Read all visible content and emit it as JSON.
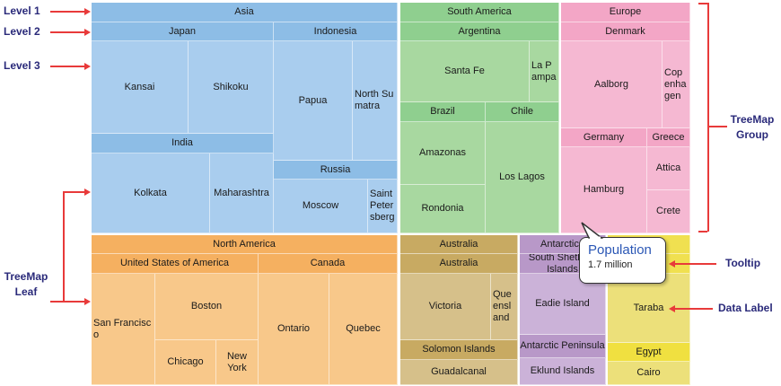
{
  "annotations": {
    "level1": "Level 1",
    "level2": "Level 2",
    "level3": "Level 3",
    "leaf": "TreeMap Leaf",
    "group": "TreeMap Group",
    "tooltip": "Tooltip",
    "data_label": "Data Label"
  },
  "tooltip": {
    "title": "Population",
    "value": "1.7 million"
  },
  "colors": {
    "asia": "#a9cdee",
    "south_america": "#a8d8a0",
    "europe": "#f5b8d2",
    "north_america": "#f8c88a",
    "australia": "#d6c08a",
    "antarctica": "#cbb2d8",
    "africa": "#ece07a",
    "annotation_arrow": "#e83a3a"
  },
  "treemap": {
    "groups": [
      {
        "name": "Asia",
        "children": [
          {
            "name": "Japan",
            "leaves": [
              "Kansai",
              "Shikoku"
            ]
          },
          {
            "name": "India",
            "leaves": [
              "Kolkata",
              "Maharashtra"
            ]
          },
          {
            "name": "Indonesia",
            "leaves": [
              "Papua",
              "North Sumatra"
            ]
          },
          {
            "name": "Russia",
            "leaves": [
              "Moscow",
              "Saint Petersberg"
            ]
          }
        ]
      },
      {
        "name": "South America",
        "children": [
          {
            "name": "Argentina",
            "leaves": [
              "Santa Fe",
              "La Pampa"
            ]
          },
          {
            "name": "Brazil",
            "leaves": [
              "Amazonas",
              "Rondonia"
            ]
          },
          {
            "name": "Chile",
            "leaves": [
              "Los Lagos"
            ]
          }
        ]
      },
      {
        "name": "Europe",
        "children": [
          {
            "name": "Denmark",
            "leaves": [
              "Aalborg",
              "Copenhagen"
            ]
          },
          {
            "name": "Germany",
            "leaves": [
              "Hamburg"
            ]
          },
          {
            "name": "Greece",
            "leaves": [
              "Attica",
              "Crete"
            ]
          }
        ]
      },
      {
        "name": "North America",
        "children": [
          {
            "name": "United States of America",
            "leaves": [
              "San Francisco",
              "Boston",
              "Chicago",
              "New York"
            ]
          },
          {
            "name": "Canada",
            "leaves": [
              "Ontario",
              "Quebec"
            ]
          }
        ]
      },
      {
        "name": "Australia",
        "children": [
          {
            "name": "Australia",
            "leaves": [
              "Victoria",
              "Queensland"
            ]
          },
          {
            "name": "Solomon Islands",
            "leaves": [
              "Guadalcanal"
            ]
          }
        ]
      },
      {
        "name": "Antarctica",
        "children": [
          {
            "name": "South Shetland Islands",
            "leaves": [
              "Eadie Island"
            ]
          },
          {
            "name": "Antarctic Peninsula",
            "leaves": [
              "Eklund Islands"
            ]
          }
        ]
      },
      {
        "name": "",
        "children": [
          {
            "name": "",
            "leaves": [
              "Taraba"
            ]
          },
          {
            "name": "Egypt",
            "leaves": [
              "Cairo"
            ]
          }
        ]
      }
    ]
  }
}
